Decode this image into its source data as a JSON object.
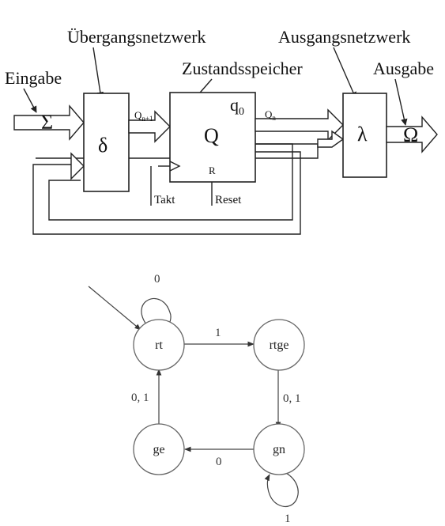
{
  "top_diagram": {
    "title_transition": "Übergangsnetzwerk",
    "title_output_net": "Ausgangsnetzwerk",
    "title_memory": "Zustandsspeicher",
    "input_label": "Eingabe",
    "output_label": "Ausgabe",
    "sigma": "Σ",
    "delta": "δ",
    "q_block": "Q",
    "q0_main": "q",
    "q0_sub": "0",
    "lambda": "λ",
    "omega": "Ω",
    "qn1_main": "Q",
    "qn1_sub": "n+1",
    "qn_main": "Q",
    "qn_sub": "n",
    "reset_pin": "R",
    "takt": "Takt",
    "reset": "Reset"
  },
  "fsm": {
    "states": [
      {
        "id": "rt",
        "label": "rt"
      },
      {
        "id": "rtge",
        "label": "rtge"
      },
      {
        "id": "gn",
        "label": "gn"
      },
      {
        "id": "ge",
        "label": "ge"
      }
    ],
    "edges": {
      "rt_self": "0",
      "rt_rtge": "1",
      "rtge_gn": "0, 1",
      "gn_ge": "0",
      "ge_rt": "0, 1",
      "gn_self": "1"
    }
  }
}
